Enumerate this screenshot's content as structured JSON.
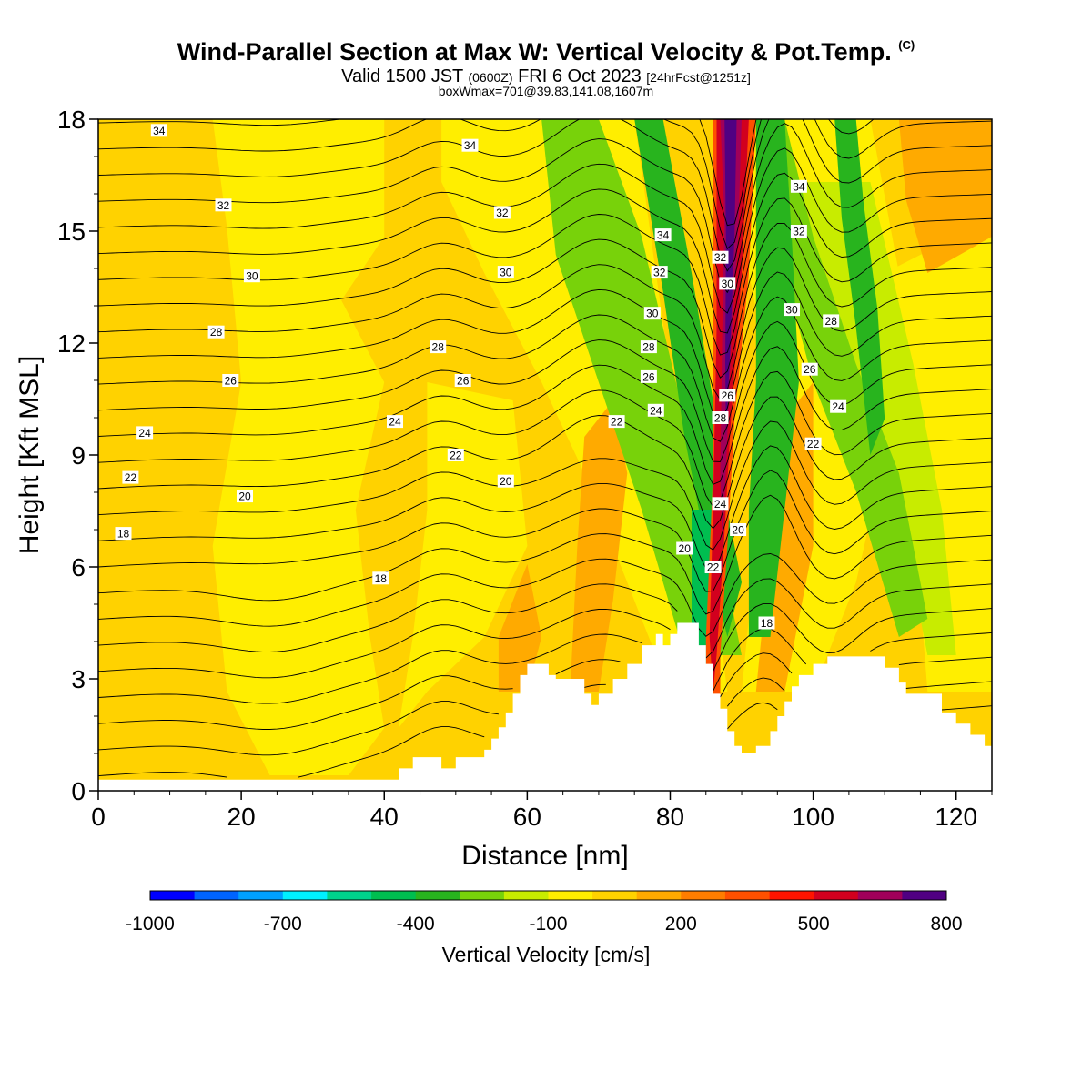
{
  "header": {
    "title": "Wind-Parallel Section at Max W: Vertical Velocity & Pot.Temp.",
    "title_tag": "(C)",
    "valid_prefix": "Valid 1500 JST",
    "valid_z": "(0600Z)",
    "valid_date": "FRI 6 Oct 2023",
    "fcst": "[24hrFcst@1251z]",
    "boxw": "boxWmax=701@39.83,141.08,1607m"
  },
  "chart_data": {
    "type": "heatmap",
    "xlabel": "Distance [nm]",
    "ylabel": "Height [Kft MSL]",
    "xlim": [
      0,
      125
    ],
    "ylim": [
      0,
      18
    ],
    "x_ticks": [
      0,
      20,
      40,
      60,
      80,
      100,
      120
    ],
    "y_ticks": [
      0,
      3,
      6,
      9,
      12,
      15,
      18
    ],
    "x_tick_labels": [
      "0",
      "20",
      "40",
      "60",
      "80",
      "100",
      "120"
    ],
    "y_tick_labels": [
      "0",
      "3",
      "6",
      "9",
      "12",
      "15",
      "18"
    ],
    "colorbar": {
      "title": "Vertical Velocity [cm/s]",
      "labels": [
        "-1000",
        "-700",
        "-400",
        "-100",
        "200",
        "500",
        "800"
      ],
      "colors": [
        "#0000ff",
        "#0064ff",
        "#00a0ff",
        "#00f0ff",
        "#00d28c",
        "#00be50",
        "#28b41e",
        "#78d20a",
        "#c8ec00",
        "#ffee00",
        "#ffd200",
        "#ffaa00",
        "#ff7d00",
        "#ff5000",
        "#ff1400",
        "#d2001e",
        "#a0005a",
        "#500082"
      ]
    },
    "contour_labels": [
      {
        "text": "34",
        "x": 8.5,
        "y": 17.7
      },
      {
        "text": "32",
        "x": 17.5,
        "y": 15.7
      },
      {
        "text": "30",
        "x": 21.5,
        "y": 13.8
      },
      {
        "text": "28",
        "x": 16.5,
        "y": 12.3
      },
      {
        "text": "26",
        "x": 18.5,
        "y": 11.0
      },
      {
        "text": "24",
        "x": 6.5,
        "y": 9.6
      },
      {
        "text": "22",
        "x": 4.5,
        "y": 8.4
      },
      {
        "text": "20",
        "x": 20.5,
        "y": 7.9
      },
      {
        "text": "18",
        "x": 3.5,
        "y": 6.9
      },
      {
        "text": "18",
        "x": 39.5,
        "y": 5.7
      },
      {
        "text": "24",
        "x": 41.5,
        "y": 9.9
      },
      {
        "text": "28",
        "x": 47.5,
        "y": 11.9
      },
      {
        "text": "26",
        "x": 51.0,
        "y": 11.0
      },
      {
        "text": "22",
        "x": 50.0,
        "y": 9.0
      },
      {
        "text": "20",
        "x": 57.0,
        "y": 8.3
      },
      {
        "text": "34",
        "x": 52.0,
        "y": 17.3
      },
      {
        "text": "32",
        "x": 56.5,
        "y": 15.5
      },
      {
        "text": "30",
        "x": 57.0,
        "y": 13.9
      },
      {
        "text": "22",
        "x": 72.5,
        "y": 9.9
      },
      {
        "text": "34",
        "x": 79.0,
        "y": 14.9
      },
      {
        "text": "32",
        "x": 78.5,
        "y": 13.9
      },
      {
        "text": "30",
        "x": 77.5,
        "y": 12.8
      },
      {
        "text": "28",
        "x": 77.0,
        "y": 11.9
      },
      {
        "text": "26",
        "x": 77.0,
        "y": 11.1
      },
      {
        "text": "24",
        "x": 78.0,
        "y": 10.2
      },
      {
        "text": "20",
        "x": 82.0,
        "y": 6.5
      },
      {
        "text": "22",
        "x": 86.0,
        "y": 6.0
      },
      {
        "text": "24",
        "x": 87.0,
        "y": 7.7
      },
      {
        "text": "28",
        "x": 87.0,
        "y": 10.0
      },
      {
        "text": "26",
        "x": 88.0,
        "y": 10.6
      },
      {
        "text": "32",
        "x": 87.0,
        "y": 14.3
      },
      {
        "text": "30",
        "x": 88.0,
        "y": 13.6
      },
      {
        "text": "20",
        "x": 89.5,
        "y": 7.0
      },
      {
        "text": "18",
        "x": 93.5,
        "y": 4.5
      },
      {
        "text": "34",
        "x": 98.0,
        "y": 16.2
      },
      {
        "text": "32",
        "x": 98.0,
        "y": 15.0
      },
      {
        "text": "30",
        "x": 97.0,
        "y": 12.9
      },
      {
        "text": "28",
        "x": 102.5,
        "y": 12.6
      },
      {
        "text": "26",
        "x": 99.5,
        "y": 11.3
      },
      {
        "text": "24",
        "x": 103.5,
        "y": 10.3
      },
      {
        "text": "22",
        "x": 100.0,
        "y": 9.3
      }
    ]
  }
}
